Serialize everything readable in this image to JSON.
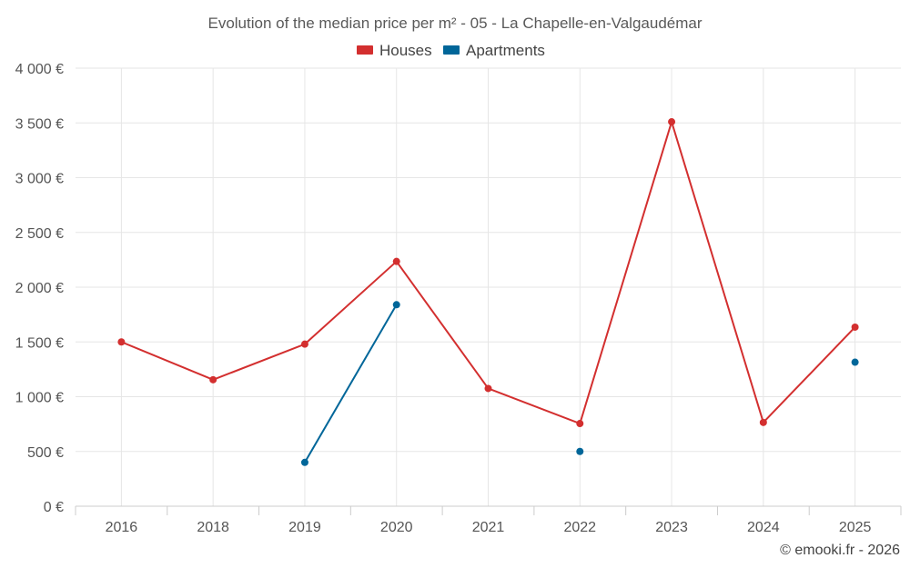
{
  "chart_data": {
    "type": "line",
    "title": "Evolution of the median price per m² - 05 - La Chapelle-en-Valgaudémar",
    "categories": [
      "2016",
      "2018",
      "2019",
      "2020",
      "2021",
      "2022",
      "2023",
      "2024",
      "2025"
    ],
    "ylim": [
      0,
      4000
    ],
    "yticks": [
      0,
      500,
      1000,
      1500,
      2000,
      2500,
      3000,
      3500,
      4000
    ],
    "ytick_labels": [
      "0 €",
      "500 €",
      "1 000 €",
      "1 500 €",
      "2 000 €",
      "2 500 €",
      "3 000 €",
      "3 500 €",
      "4 000 €"
    ],
    "xlabel": "",
    "ylabel": "",
    "grid": true,
    "legend_position": "top-center",
    "series": [
      {
        "name": "Houses",
        "color": "#d32f2f",
        "values": [
          1500,
          1155,
          1480,
          2235,
          1075,
          755,
          3510,
          765,
          1635
        ]
      },
      {
        "name": "Apartments",
        "color": "#006699",
        "values": [
          null,
          null,
          400,
          1840,
          null,
          500,
          null,
          null,
          1315
        ]
      }
    ]
  },
  "credit": "© emooki.fr - 2026"
}
